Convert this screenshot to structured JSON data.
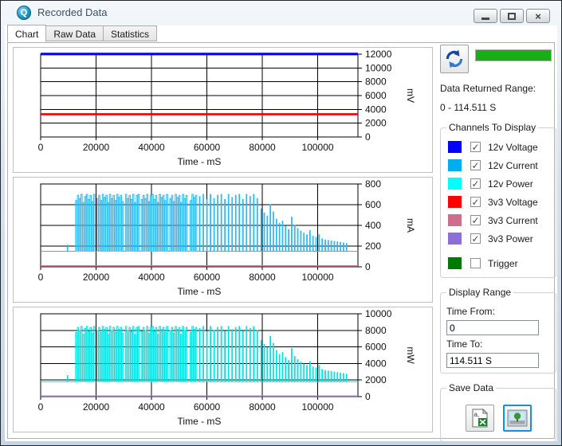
{
  "window": {
    "title": "Recorded Data",
    "icon_letter": "Q"
  },
  "icons": {
    "app_logo": "Q-logo-circle",
    "refresh_icon": "blue-circular-arrows",
    "minimize_icon": "dash",
    "maximize_icon": "square",
    "close_icon": "x",
    "close_glyph": "×",
    "check_glyph": "✓",
    "csv_icon_text": "a,",
    "save_csv_icon": "document-to-excel",
    "save_image_icon": "picture"
  },
  "tabs": [
    {
      "label": "Chart",
      "active": true
    },
    {
      "label": "Raw Data",
      "active": false
    },
    {
      "label": "Statistics",
      "active": false
    }
  ],
  "sidebar": {
    "progress": {
      "value_percent": 100,
      "color": "#16B016"
    },
    "data_returned_label": "Data Returned Range:",
    "data_returned_value": "0  -  114.511 S",
    "channels_group_label": "Channels To Display",
    "channels": [
      {
        "label": "12v Voltage",
        "color": "#0000FF",
        "checked": true
      },
      {
        "label": "12v Current",
        "color": "#00AEEF",
        "checked": true
      },
      {
        "label": "12v Power",
        "color": "#00FFFF",
        "checked": true
      },
      {
        "label": "3v3 Voltage",
        "color": "#FF0000",
        "checked": true
      },
      {
        "label": "3v3 Current",
        "color": "#CE6D8D",
        "checked": true
      },
      {
        "label": "3v3 Power",
        "color": "#8B6FD6",
        "checked": true
      },
      {
        "label": "Trigger",
        "color": "#007A00",
        "checked": false,
        "gap_before": true
      }
    ],
    "display_range_group_label": "Display Range",
    "time_from_label": "Time From:",
    "time_from_value": "0",
    "time_to_label": "Time To:",
    "time_to_value": "114.511 S",
    "save_group_label": "Save Data"
  },
  "chart_data": [
    {
      "type": "line",
      "xlabel": "Time - mS",
      "ylabel": "mV",
      "xlim": [
        0,
        114511
      ],
      "ylim": [
        0,
        12000
      ],
      "xticks": [
        0,
        20000,
        40000,
        60000,
        80000,
        100000
      ],
      "yticks": [
        0,
        2000,
        4000,
        6000,
        8000,
        10000,
        12000
      ],
      "grid": true,
      "series": [
        {
          "name": "12v Voltage",
          "color": "#0000F0",
          "width": 3.2,
          "kind": "flat",
          "value": 12020
        },
        {
          "name": "3v3 Voltage",
          "color": "#F00000",
          "width": 2.6,
          "kind": "flat",
          "value": 3300
        }
      ]
    },
    {
      "type": "line",
      "xlabel": "Time - mS",
      "ylabel": "mA",
      "xlim": [
        0,
        114511
      ],
      "ylim": [
        0,
        800
      ],
      "xticks": [
        0,
        20000,
        40000,
        60000,
        80000,
        100000
      ],
      "yticks": [
        0,
        200,
        400,
        600,
        800
      ],
      "grid": true,
      "series": [
        {
          "name": "12v Current",
          "color": "#2FB9F0",
          "width": 1,
          "kind": "bursts",
          "baseline": 150,
          "scale": 1
        },
        {
          "name": "3v3 Current",
          "color": "#D06C8C",
          "width": 1.6,
          "kind": "flat",
          "value": 8
        }
      ]
    },
    {
      "type": "line",
      "xlabel": "Time - mS",
      "ylabel": "mW",
      "xlim": [
        0,
        114511
      ],
      "ylim": [
        0,
        10000
      ],
      "xticks": [
        0,
        20000,
        40000,
        60000,
        80000,
        100000
      ],
      "yticks": [
        0,
        2000,
        4000,
        6000,
        8000,
        10000
      ],
      "grid": true,
      "series": [
        {
          "name": "12v Power",
          "color": "#00E2E2",
          "width": 1,
          "kind": "bursts",
          "baseline": 1800,
          "scale": 12.1
        },
        {
          "name": "3v3 Power",
          "color": "#8B6FD6",
          "width": 1.6,
          "kind": "flat",
          "value": 60
        }
      ]
    }
  ],
  "waveform_bursts_ms_mA": [
    [
      9600,
      9800,
      210
    ],
    [
      12600,
      13050,
      640
    ],
    [
      13250,
      13700,
      690
    ],
    [
      13900,
      14350,
      660
    ],
    [
      14550,
      15000,
      700
    ],
    [
      15200,
      15650,
      620
    ],
    [
      15850,
      16300,
      680
    ],
    [
      16500,
      16950,
      700
    ],
    [
      17150,
      17600,
      650
    ],
    [
      17800,
      18250,
      690
    ],
    [
      18450,
      18900,
      630
    ],
    [
      19100,
      19550,
      700
    ],
    [
      20300,
      20750,
      660
    ],
    [
      20950,
      21400,
      690
    ],
    [
      21600,
      22050,
      640
    ],
    [
      22250,
      22700,
      700
    ],
    [
      22900,
      23350,
      670
    ],
    [
      23550,
      24000,
      690
    ],
    [
      24200,
      24650,
      620
    ],
    [
      24850,
      25300,
      700
    ],
    [
      25500,
      25950,
      660
    ],
    [
      26150,
      26600,
      690
    ],
    [
      26800,
      27250,
      640
    ],
    [
      27450,
      27900,
      700
    ],
    [
      28100,
      28550,
      670
    ],
    [
      28750,
      29200,
      690
    ],
    [
      29400,
      29850,
      630
    ],
    [
      30600,
      31050,
      700
    ],
    [
      31250,
      31700,
      660
    ],
    [
      31900,
      32350,
      690
    ],
    [
      32550,
      33000,
      650
    ],
    [
      33200,
      33650,
      700
    ],
    [
      33850,
      34300,
      620
    ],
    [
      34500,
      34950,
      690
    ],
    [
      35150,
      35600,
      700
    ],
    [
      36300,
      36750,
      650
    ],
    [
      36950,
      37400,
      690
    ],
    [
      37600,
      38050,
      660
    ],
    [
      38250,
      38700,
      700
    ],
    [
      38900,
      39350,
      630
    ],
    [
      39550,
      40000,
      690
    ],
    [
      40200,
      40650,
      700
    ],
    [
      40850,
      41300,
      650
    ],
    [
      41500,
      41950,
      690
    ],
    [
      42150,
      42600,
      620
    ],
    [
      42800,
      43250,
      700
    ],
    [
      43450,
      43900,
      670
    ],
    [
      44100,
      44550,
      690
    ],
    [
      44750,
      45200,
      640
    ],
    [
      45400,
      45850,
      700
    ],
    [
      46600,
      47050,
      660
    ],
    [
      47250,
      47700,
      690
    ],
    [
      47900,
      48350,
      630
    ],
    [
      48550,
      49000,
      700
    ],
    [
      49200,
      49650,
      670
    ],
    [
      49850,
      50300,
      690
    ],
    [
      50500,
      50950,
      620
    ],
    [
      51150,
      51600,
      700
    ],
    [
      51800,
      52250,
      660
    ],
    [
      52450,
      52900,
      690
    ],
    [
      53950,
      54400,
      640
    ],
    [
      54600,
      55050,
      700
    ],
    [
      55250,
      55700,
      670
    ],
    [
      55900,
      56350,
      690
    ],
    [
      57300,
      57520,
      680
    ],
    [
      58600,
      58820,
      700
    ],
    [
      59900,
      60120,
      650
    ],
    [
      61200,
      61420,
      700
    ],
    [
      62500,
      62720,
      660
    ],
    [
      63800,
      64020,
      690
    ],
    [
      65100,
      65320,
      700
    ],
    [
      66400,
      66620,
      650
    ],
    [
      67700,
      67920,
      700
    ],
    [
      69000,
      69220,
      670
    ],
    [
      70300,
      70520,
      690
    ],
    [
      71600,
      71820,
      700
    ],
    [
      72900,
      73120,
      650
    ],
    [
      74200,
      74420,
      700
    ],
    [
      75500,
      75720,
      680
    ],
    [
      76800,
      77020,
      700
    ],
    [
      78100,
      78320,
      660
    ],
    [
      79500,
      79720,
      560
    ],
    [
      80600,
      80820,
      520
    ],
    [
      81700,
      81920,
      490
    ],
    [
      82800,
      83020,
      600
    ],
    [
      83900,
      84120,
      530
    ],
    [
      85000,
      85220,
      460
    ],
    [
      86100,
      86320,
      420
    ],
    [
      87200,
      87420,
      440
    ],
    [
      88300,
      88520,
      390
    ],
    [
      89400,
      89620,
      360
    ],
    [
      90500,
      90720,
      480
    ],
    [
      91600,
      91820,
      400
    ],
    [
      92700,
      92920,
      370
    ],
    [
      93800,
      94020,
      345
    ],
    [
      94900,
      95120,
      325
    ],
    [
      96000,
      96220,
      310
    ],
    [
      97100,
      97320,
      350
    ],
    [
      98200,
      98420,
      295
    ],
    [
      99300,
      99520,
      285
    ],
    [
      100400,
      100620,
      310
    ],
    [
      101500,
      101720,
      270
    ],
    [
      102600,
      102820,
      260
    ],
    [
      103700,
      103920,
      255
    ],
    [
      104800,
      105020,
      250
    ],
    [
      105900,
      106120,
      245
    ],
    [
      107000,
      107220,
      240
    ],
    [
      108100,
      108320,
      235
    ],
    [
      109200,
      109420,
      230
    ],
    [
      110300,
      110520,
      225
    ]
  ]
}
